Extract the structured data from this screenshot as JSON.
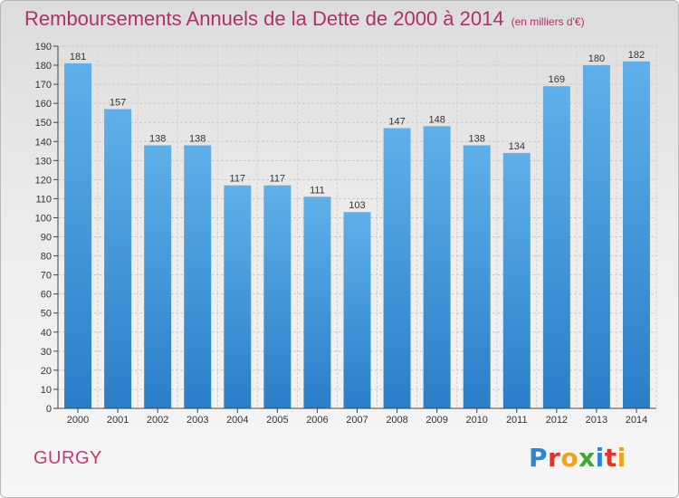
{
  "title": "Remboursements Annuels de la Dette de 2000 à 2014",
  "unit": "(en milliers d'€)",
  "commune": "GURGY",
  "logo": {
    "letters": [
      "P",
      "r",
      "o",
      "x",
      "i",
      "t",
      "i"
    ],
    "colors": [
      "#2e86d0",
      "#e7312b",
      "#f0a21d",
      "#3aa935",
      "#2e86d0",
      "#e7312b",
      "#f0a21d"
    ]
  },
  "colors": {
    "bar_light": "#5fb0ea",
    "bar_dark": "#2a7ec8",
    "title": "#b0306a",
    "commune": "#c8386f"
  },
  "chart_data": {
    "type": "bar",
    "title": "Remboursements Annuels de la Dette de 2000 à 2014",
    "xlabel": "",
    "ylabel": "",
    "ylim": [
      0,
      190
    ],
    "y_ticks": [
      0,
      10,
      20,
      30,
      40,
      50,
      60,
      70,
      80,
      90,
      100,
      110,
      120,
      130,
      140,
      150,
      160,
      170,
      180,
      190
    ],
    "grid": true,
    "categories": [
      "2000",
      "2001",
      "2002",
      "2003",
      "2004",
      "2005",
      "2006",
      "2007",
      "2008",
      "2009",
      "2010",
      "2011",
      "2012",
      "2013",
      "2014"
    ],
    "values": [
      181,
      157,
      138,
      138,
      117,
      117,
      111,
      103,
      147,
      148,
      138,
      134,
      169,
      180,
      182
    ]
  }
}
